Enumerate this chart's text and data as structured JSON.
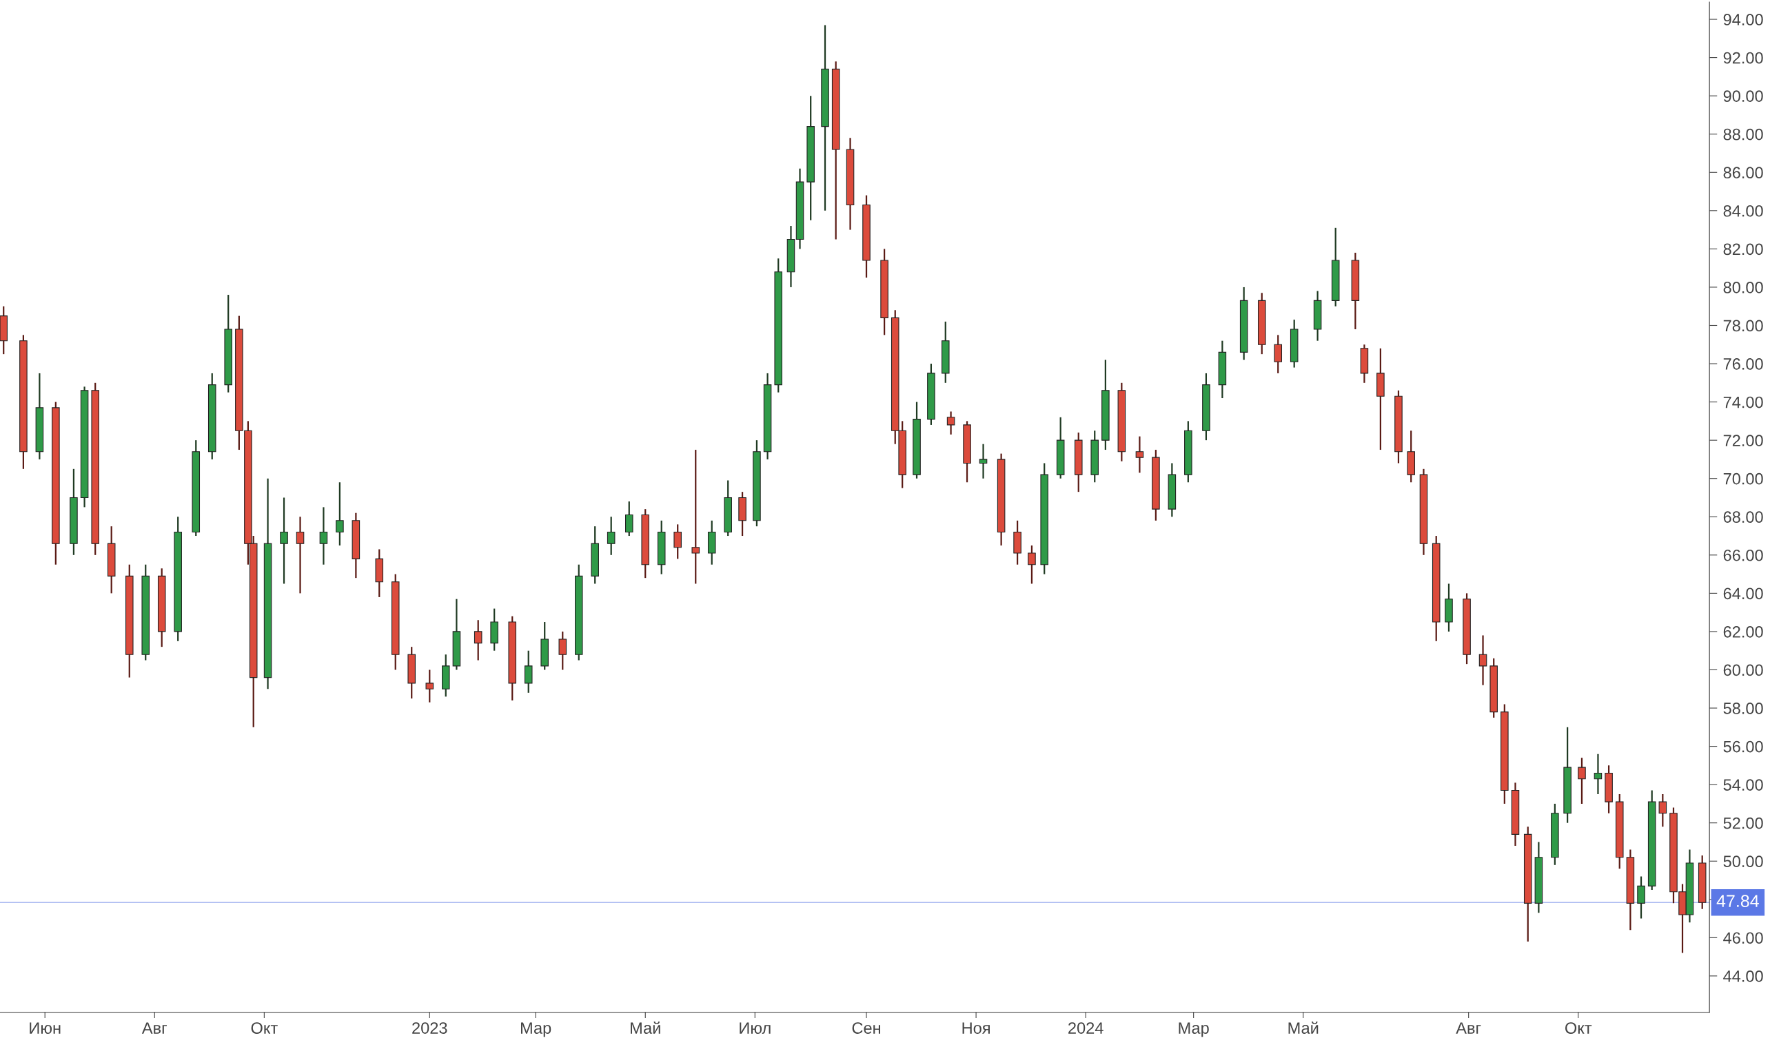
{
  "chart_data": {
    "type": "candlestick",
    "x": [
      "2022-05-09",
      "2022-05-20",
      "2022-05-29",
      "2022-06-07",
      "2022-06-17",
      "2022-06-23",
      "2022-06-29",
      "2022-07-08",
      "2022-07-18",
      "2022-07-27",
      "2022-08-05",
      "2022-08-14",
      "2022-08-24",
      "2022-09-02",
      "2022-09-11",
      "2022-09-17",
      "2022-09-22",
      "2022-09-25",
      "2022-10-03",
      "2022-10-12",
      "2022-10-21",
      "2022-11-03",
      "2022-11-12",
      "2022-11-21",
      "2022-12-04",
      "2022-12-13",
      "2022-12-22",
      "2023-01-01",
      "2023-01-10",
      "2023-01-16",
      "2023-01-28",
      "2023-02-06",
      "2023-02-16",
      "2023-02-25",
      "2023-03-06",
      "2023-03-16",
      "2023-03-25",
      "2023-04-03",
      "2023-04-12",
      "2023-04-22",
      "2023-05-01",
      "2023-05-10",
      "2023-05-19",
      "2023-05-29",
      "2023-06-07",
      "2023-06-16",
      "2023-06-24",
      "2023-07-02",
      "2023-07-08",
      "2023-07-14",
      "2023-07-21",
      "2023-07-26",
      "2023-08-01",
      "2023-08-09",
      "2023-08-15",
      "2023-08-23",
      "2023-09-01",
      "2023-09-11",
      "2023-09-17",
      "2023-09-21",
      "2023-09-29",
      "2023-10-07",
      "2023-10-15",
      "2023-10-18",
      "2023-10-27",
      "2023-11-05",
      "2023-11-15",
      "2023-11-24",
      "2023-12-02",
      "2023-12-09",
      "2023-12-18",
      "2023-12-28",
      "2024-01-06",
      "2024-01-12",
      "2024-01-21",
      "2024-01-31",
      "2024-02-09",
      "2024-02-18",
      "2024-02-27",
      "2024-03-08",
      "2024-03-17",
      "2024-03-29",
      "2024-04-08",
      "2024-04-17",
      "2024-04-26",
      "2024-05-09",
      "2024-05-19",
      "2024-05-30",
      "2024-06-04",
      "2024-06-13",
      "2024-06-23",
      "2024-06-30",
      "2024-07-07",
      "2024-07-14",
      "2024-07-21",
      "2024-07-31",
      "2024-08-09",
      "2024-08-15",
      "2024-08-21",
      "2024-08-27",
      "2024-09-03",
      "2024-09-09",
      "2024-09-18",
      "2024-09-25",
      "2024-10-03",
      "2024-10-12",
      "2024-10-18",
      "2024-10-24",
      "2024-10-30",
      "2024-11-05",
      "2024-11-11",
      "2024-11-17",
      "2024-11-23",
      "2024-11-28",
      "2024-12-02",
      "2024-12-09"
    ],
    "ohlc": [
      [
        78.5,
        79.0,
        76.5,
        77.2
      ],
      [
        77.2,
        77.5,
        70.5,
        71.4
      ],
      [
        71.4,
        75.5,
        71.0,
        73.7
      ],
      [
        73.7,
        74.0,
        65.5,
        66.6
      ],
      [
        66.6,
        70.5,
        66.0,
        69.0
      ],
      [
        69.0,
        74.8,
        68.5,
        74.6
      ],
      [
        74.6,
        75.0,
        66.0,
        66.6
      ],
      [
        66.6,
        67.5,
        64.0,
        64.9
      ],
      [
        64.9,
        65.5,
        59.6,
        60.8
      ],
      [
        60.8,
        65.5,
        60.5,
        64.9
      ],
      [
        64.9,
        65.3,
        61.2,
        62.0
      ],
      [
        62.0,
        68.0,
        61.5,
        67.2
      ],
      [
        67.2,
        72.0,
        67.0,
        71.4
      ],
      [
        71.4,
        75.5,
        71.0,
        74.9
      ],
      [
        74.9,
        79.6,
        74.5,
        77.8
      ],
      [
        77.8,
        78.5,
        71.5,
        72.5
      ],
      [
        72.5,
        73.0,
        65.5,
        66.6
      ],
      [
        66.6,
        67.0,
        57.0,
        59.6
      ],
      [
        59.6,
        70.0,
        59.0,
        66.6
      ],
      [
        66.6,
        69.0,
        64.5,
        67.2
      ],
      [
        67.2,
        68.0,
        64.0,
        66.6
      ],
      [
        66.6,
        68.5,
        65.5,
        67.2
      ],
      [
        67.2,
        69.8,
        66.5,
        67.8
      ],
      [
        67.8,
        68.2,
        64.8,
        65.8
      ],
      [
        65.8,
        66.3,
        63.8,
        64.6
      ],
      [
        64.6,
        65.0,
        60.0,
        60.8
      ],
      [
        60.8,
        61.2,
        58.5,
        59.3
      ],
      [
        59.3,
        60.0,
        58.3,
        59.0
      ],
      [
        59.0,
        60.8,
        58.6,
        60.2
      ],
      [
        60.2,
        63.7,
        60.0,
        62.0
      ],
      [
        62.0,
        62.6,
        60.5,
        61.4
      ],
      [
        61.4,
        63.2,
        61.0,
        62.5
      ],
      [
        62.5,
        62.8,
        58.4,
        59.3
      ],
      [
        59.3,
        61.0,
        58.8,
        60.2
      ],
      [
        60.2,
        62.5,
        60.0,
        61.6
      ],
      [
        61.6,
        62.0,
        60.0,
        60.8
      ],
      [
        60.8,
        65.5,
        60.5,
        64.9
      ],
      [
        64.9,
        67.5,
        64.5,
        66.6
      ],
      [
        66.6,
        68.0,
        66.0,
        67.2
      ],
      [
        67.2,
        68.8,
        67.0,
        68.1
      ],
      [
        68.1,
        68.4,
        64.8,
        65.5
      ],
      [
        65.5,
        67.8,
        65.0,
        67.2
      ],
      [
        67.2,
        67.6,
        65.8,
        66.4
      ],
      [
        66.4,
        71.5,
        64.5,
        66.1
      ],
      [
        66.1,
        67.8,
        65.5,
        67.2
      ],
      [
        67.2,
        69.9,
        67.0,
        69.0
      ],
      [
        69.0,
        69.3,
        67.0,
        67.8
      ],
      [
        67.8,
        72.0,
        67.5,
        71.4
      ],
      [
        71.4,
        75.5,
        71.0,
        74.9
      ],
      [
        74.9,
        81.5,
        74.5,
        80.8
      ],
      [
        80.8,
        83.2,
        80.0,
        82.5
      ],
      [
        82.5,
        86.2,
        82.0,
        85.5
      ],
      [
        85.5,
        90.0,
        83.5,
        88.4
      ],
      [
        88.4,
        93.7,
        84.0,
        91.4
      ],
      [
        91.4,
        91.8,
        82.5,
        87.2
      ],
      [
        87.2,
        87.8,
        83.0,
        84.3
      ],
      [
        84.3,
        84.8,
        80.5,
        81.4
      ],
      [
        81.4,
        82.0,
        77.5,
        78.4
      ],
      [
        78.4,
        78.8,
        71.8,
        72.5
      ],
      [
        72.5,
        73.0,
        69.5,
        70.2
      ],
      [
        70.2,
        74.0,
        70.0,
        73.1
      ],
      [
        73.1,
        76.0,
        72.8,
        75.5
      ],
      [
        75.5,
        78.2,
        75.0,
        77.2
      ],
      [
        73.2,
        73.5,
        72.3,
        72.8
      ],
      [
        72.8,
        73.0,
        69.8,
        70.8
      ],
      [
        70.8,
        71.8,
        70.0,
        71.0
      ],
      [
        71.0,
        71.3,
        66.5,
        67.2
      ],
      [
        67.2,
        67.8,
        65.5,
        66.1
      ],
      [
        66.1,
        66.5,
        64.5,
        65.5
      ],
      [
        65.5,
        70.8,
        65.0,
        70.2
      ],
      [
        70.2,
        73.2,
        70.0,
        72.0
      ],
      [
        72.0,
        72.4,
        69.3,
        70.2
      ],
      [
        70.2,
        72.5,
        69.8,
        72.0
      ],
      [
        72.0,
        76.2,
        71.5,
        74.6
      ],
      [
        74.6,
        75.0,
        70.9,
        71.4
      ],
      [
        71.4,
        72.2,
        70.3,
        71.1
      ],
      [
        71.1,
        71.5,
        67.8,
        68.4
      ],
      [
        68.4,
        70.8,
        68.0,
        70.2
      ],
      [
        70.2,
        73.0,
        69.8,
        72.5
      ],
      [
        72.5,
        75.5,
        72.0,
        74.9
      ],
      [
        74.9,
        77.2,
        74.2,
        76.6
      ],
      [
        76.6,
        80.0,
        76.2,
        79.3
      ],
      [
        79.3,
        79.7,
        76.5,
        77.0
      ],
      [
        77.0,
        77.5,
        75.5,
        76.1
      ],
      [
        76.1,
        78.3,
        75.8,
        77.8
      ],
      [
        77.8,
        79.8,
        77.2,
        79.3
      ],
      [
        79.3,
        83.1,
        79.0,
        81.4
      ],
      [
        81.4,
        81.8,
        77.8,
        79.3
      ],
      [
        76.8,
        77.0,
        75.0,
        75.5
      ],
      [
        75.5,
        76.8,
        71.5,
        74.3
      ],
      [
        74.3,
        74.6,
        70.8,
        71.4
      ],
      [
        71.4,
        72.5,
        69.8,
        70.2
      ],
      [
        70.2,
        70.5,
        66.0,
        66.6
      ],
      [
        66.6,
        67.0,
        61.5,
        62.5
      ],
      [
        62.5,
        64.5,
        62.0,
        63.7
      ],
      [
        63.7,
        64.0,
        60.3,
        60.8
      ],
      [
        60.8,
        61.8,
        59.2,
        60.2
      ],
      [
        60.2,
        60.6,
        57.5,
        57.8
      ],
      [
        57.8,
        58.2,
        53.0,
        53.7
      ],
      [
        53.7,
        54.1,
        50.8,
        51.4
      ],
      [
        51.4,
        51.8,
        45.8,
        47.8
      ],
      [
        47.8,
        51.0,
        47.3,
        50.2
      ],
      [
        50.2,
        53.0,
        49.8,
        52.5
      ],
      [
        52.5,
        57.0,
        52.0,
        54.9
      ],
      [
        54.9,
        55.4,
        53.0,
        54.3
      ],
      [
        54.3,
        55.6,
        53.5,
        54.6
      ],
      [
        54.6,
        55.0,
        52.5,
        53.1
      ],
      [
        53.1,
        53.5,
        49.6,
        50.2
      ],
      [
        50.2,
        50.6,
        46.4,
        47.8
      ],
      [
        47.8,
        49.2,
        47.0,
        48.7
      ],
      [
        48.7,
        53.7,
        48.5,
        53.1
      ],
      [
        53.1,
        53.5,
        51.8,
        52.5
      ],
      [
        52.5,
        52.8,
        47.8,
        48.4
      ],
      [
        48.4,
        48.8,
        45.2,
        47.2
      ],
      [
        47.2,
        50.6,
        46.8,
        49.9
      ],
      [
        49.9,
        50.3,
        47.5,
        47.84
      ]
    ],
    "xlim": [
      "2022-05-07",
      "2024-12-13"
    ],
    "xticks": [
      {
        "value": "2022-06-01",
        "label": "Июн"
      },
      {
        "value": "2022-08-01",
        "label": "Авг"
      },
      {
        "value": "2022-10-01",
        "label": "Окт"
      },
      {
        "value": "2023-01-01",
        "label": "2023"
      },
      {
        "value": "2023-03-01",
        "label": "Мар"
      },
      {
        "value": "2023-05-01",
        "label": "Май"
      },
      {
        "value": "2023-07-01",
        "label": "Июл"
      },
      {
        "value": "2023-09-01",
        "label": "Сен"
      },
      {
        "value": "2023-11-01",
        "label": "Ноя"
      },
      {
        "value": "2024-01-01",
        "label": "2024"
      },
      {
        "value": "2024-03-01",
        "label": "Мар"
      },
      {
        "value": "2024-05-01",
        "label": "Май"
      },
      {
        "value": "2024-08-01",
        "label": "Авг"
      },
      {
        "value": "2024-10-01",
        "label": "Окт"
      }
    ],
    "ylim": [
      42.1,
      94.9
    ],
    "yticks": [
      {
        "value": 44,
        "label": "44.00"
      },
      {
        "value": 46,
        "label": "46.00"
      },
      {
        "value": 48,
        "label": null
      },
      {
        "value": 50,
        "label": "50.00"
      },
      {
        "value": 52,
        "label": "52.00"
      },
      {
        "value": 54,
        "label": "54.00"
      },
      {
        "value": 56,
        "label": "56.00"
      },
      {
        "value": 58,
        "label": "58.00"
      },
      {
        "value": 60,
        "label": "60.00"
      },
      {
        "value": 62,
        "label": "62.00"
      },
      {
        "value": 64,
        "label": "64.00"
      },
      {
        "value": 66,
        "label": "66.00"
      },
      {
        "value": 68,
        "label": "68.00"
      },
      {
        "value": 70,
        "label": "70.00"
      },
      {
        "value": 72,
        "label": "72.00"
      },
      {
        "value": 74,
        "label": "74.00"
      },
      {
        "value": 76,
        "label": "76.00"
      },
      {
        "value": 78,
        "label": "78.00"
      },
      {
        "value": 80,
        "label": "80.00"
      },
      {
        "value": 82,
        "label": "82.00"
      },
      {
        "value": 84,
        "label": "84.00"
      },
      {
        "value": 86,
        "label": "86.00"
      },
      {
        "value": 88,
        "label": "88.00"
      },
      {
        "value": 90,
        "label": "90.00"
      },
      {
        "value": 92,
        "label": "92.00"
      },
      {
        "value": 94,
        "label": "94.00"
      }
    ],
    "ref_lines": [
      {
        "axis": "y",
        "value": 47.84,
        "label": "47.84",
        "color": "#5b78e6"
      }
    ],
    "grid": false,
    "legend": false
  }
}
